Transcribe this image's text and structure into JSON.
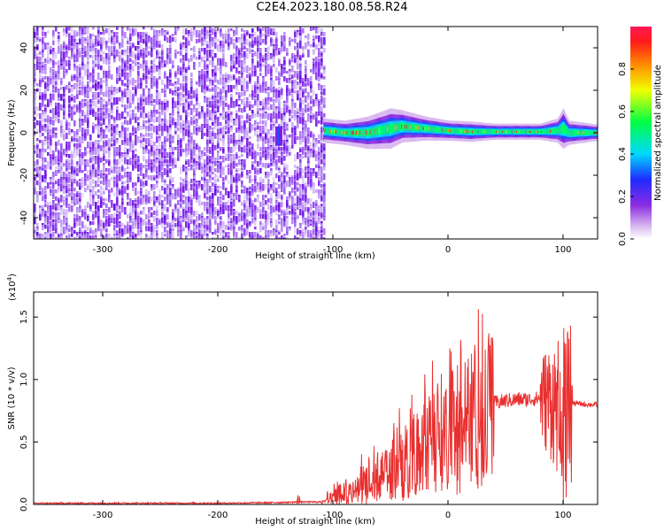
{
  "title": "C2E4.2023.180.08.58.R24",
  "chart_data": [
    {
      "type": "heatmap",
      "xlabel": "Height of straight line (km)",
      "ylabel": "Frequency (Hz)",
      "xlim": [
        -360,
        130
      ],
      "ylim": [
        -50,
        50
      ],
      "xticks": [
        -300,
        -200,
        -100,
        0,
        100
      ],
      "yticks": [
        -40,
        -20,
        0,
        20,
        40
      ],
      "noise_region_x": [
        -360,
        -108
      ],
      "signal_track": {
        "x": [
          -108,
          -90,
          -70,
          -50,
          -40,
          -20,
          0,
          20,
          40,
          60,
          80,
          95,
          100,
          105,
          130
        ],
        "center_freq": [
          1,
          0,
          0,
          2,
          3,
          2,
          1,
          0.5,
          0.5,
          0.5,
          0.5,
          1,
          2,
          0,
          0
        ],
        "half_width": [
          3,
          3,
          4,
          5,
          4,
          3,
          2.5,
          2.5,
          2,
          2,
          2,
          3,
          5,
          3,
          2
        ]
      },
      "colorbar": {
        "label": "Normalized spectral amplitude",
        "range": [
          0.0,
          1.0
        ],
        "ticks": [
          "0.0",
          "0.2",
          "0.4",
          "0.6",
          "0.8"
        ]
      }
    },
    {
      "type": "line",
      "xlabel": "Height of straight line (km)",
      "ylabel": "SNR (10 * v/v)",
      "scale_note": "(x10",
      "scale_exp": "4",
      "xlim": [
        -360,
        130
      ],
      "ylim": [
        0,
        1.7
      ],
      "xticks": [
        -300,
        -200,
        -100,
        0,
        100
      ],
      "yticks": [
        "0.0",
        "0.5",
        "1.0",
        "1.5"
      ],
      "series": [
        {
          "color": "#e8302f",
          "x": [
            -360,
            -300,
            -250,
            -200,
            -150,
            -130,
            -120,
            -110,
            -100,
            -90,
            -80,
            -70,
            -60,
            -50,
            -40,
            -30,
            -20,
            -10,
            0,
            10,
            20,
            30,
            40,
            50,
            60,
            70,
            80,
            90,
            95,
            100,
            103,
            105,
            110,
            120,
            130
          ],
          "y": [
            0.01,
            0.01,
            0.01,
            0.01,
            0.015,
            0.02,
            0.02,
            0.02,
            0.06,
            0.1,
            0.13,
            0.17,
            0.22,
            0.27,
            0.32,
            0.4,
            0.48,
            0.55,
            0.6,
            0.67,
            0.74,
            0.79,
            0.81,
            0.83,
            0.84,
            0.84,
            0.85,
            0.83,
            0.8,
            0.78,
            0.82,
            0.8,
            0.81,
            0.8,
            0.8
          ]
        }
      ]
    }
  ]
}
